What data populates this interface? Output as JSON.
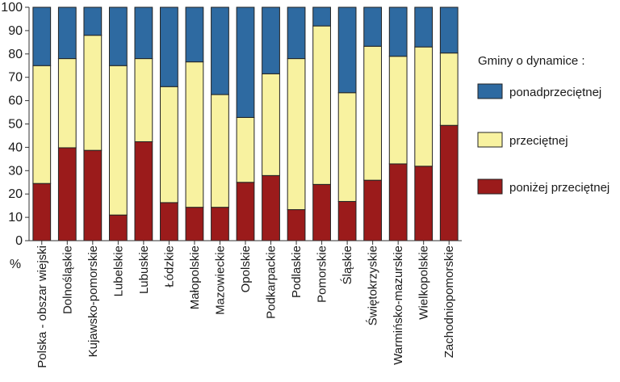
{
  "chart_data": {
    "type": "bar",
    "stacked": true,
    "title": "",
    "xlabel": "",
    "ylabel": "%",
    "ylim": [
      0,
      100
    ],
    "yticks": [
      0,
      10,
      20,
      30,
      40,
      50,
      60,
      70,
      80,
      90,
      100
    ],
    "legend_title": "Gminy o dynamice :",
    "legend_position": "right",
    "categories": [
      "Polska - obszar wiejski",
      "Dolnośląskie",
      "Kujawsko-pomorskie",
      "Lubelskie",
      "Lubuskie",
      "Łódzkie",
      "Małopolskie",
      "Mazowieckie",
      "Opolskie",
      "Podkarpackie",
      "Podlaskie",
      "Pomorskie",
      "Śląskie",
      "Świętokrzyskie",
      "Warmińsko-mazurskie",
      "Wielkopolskie",
      "Zachodniopomorskie"
    ],
    "series": [
      {
        "name": "poniżej przeciętnej",
        "color": "#9b1b1b",
        "values": [
          24.5,
          39.8,
          38.7,
          11.0,
          42.4,
          16.3,
          14.3,
          14.3,
          25.0,
          27.9,
          13.3,
          24.1,
          16.8,
          25.9,
          32.9,
          31.9,
          49.4
        ]
      },
      {
        "name": "przeciętnej",
        "color": "#f8f2a0",
        "values": [
          50.5,
          38.2,
          49.3,
          64.0,
          35.6,
          49.7,
          62.3,
          48.3,
          27.8,
          43.6,
          64.7,
          67.9,
          46.6,
          57.4,
          46.1,
          51.1,
          31.0
        ]
      },
      {
        "name": "ponadprzeciętnej",
        "color": "#2e6aa1",
        "values": [
          25.0,
          22.0,
          12.0,
          25.0,
          22.0,
          34.0,
          23.4,
          37.4,
          47.2,
          28.5,
          22.0,
          8.0,
          36.6,
          16.7,
          21.0,
          17.0,
          19.6
        ]
      }
    ]
  }
}
